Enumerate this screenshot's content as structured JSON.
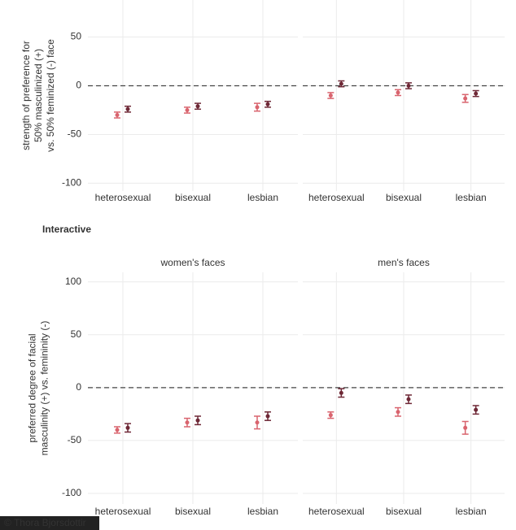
{
  "chart_data": [
    {
      "type": "errorbar",
      "ylabel": [
        "strength of preference for",
        "50% masculinized (+)",
        "vs. 50% feminized (-) face"
      ],
      "categories": [
        "heterosexual",
        "bisexual",
        "lesbian"
      ],
      "ylim": [
        -108,
        88
      ],
      "yticks": [
        -100,
        -50,
        0,
        50
      ],
      "hline": 0,
      "grid": true,
      "facets": [
        {
          "series": [
            {
              "color": "#d9646e",
              "values": [
                -30,
                -25,
                -22
              ],
              "errors": [
                3,
                3,
                4
              ]
            },
            {
              "color": "#6e2836",
              "values": [
                -24,
                -21,
                -19
              ],
              "errors": [
                3,
                3,
                3
              ]
            }
          ]
        },
        {
          "series": [
            {
              "color": "#d9646e",
              "values": [
                -10,
                -7,
                -13
              ],
              "errors": [
                3,
                3,
                4
              ]
            },
            {
              "color": "#6e2836",
              "values": [
                2,
                0,
                -8
              ],
              "errors": [
                3,
                3,
                3
              ]
            }
          ]
        }
      ]
    },
    {
      "type": "errorbar",
      "title": "Interactive",
      "ylabel": [
        "preferred degree of facial",
        "masculinity (+) vs. femininity (-)"
      ],
      "categories": [
        "heterosexual",
        "bisexual",
        "lesbian"
      ],
      "ylim": [
        -110,
        109
      ],
      "yticks": [
        -100,
        -50,
        0,
        50,
        100
      ],
      "hline": 0,
      "grid": true,
      "facets": [
        {
          "title": "women's faces",
          "series": [
            {
              "color": "#d9646e",
              "values": [
                -40,
                -33,
                -33
              ],
              "errors": [
                3,
                4,
                6
              ]
            },
            {
              "color": "#6e2836",
              "values": [
                -38,
                -31,
                -27
              ],
              "errors": [
                4,
                4,
                4
              ]
            }
          ]
        },
        {
          "title": "men's faces",
          "series": [
            {
              "color": "#d9646e",
              "values": [
                -26,
                -23,
                -38
              ],
              "errors": [
                3,
                4,
                6
              ]
            },
            {
              "color": "#6e2836",
              "values": [
                -5,
                -11,
                -21
              ],
              "errors": [
                4,
                4,
                4
              ]
            }
          ]
        }
      ]
    }
  ],
  "credit": "© Thora Bjorsdottir"
}
